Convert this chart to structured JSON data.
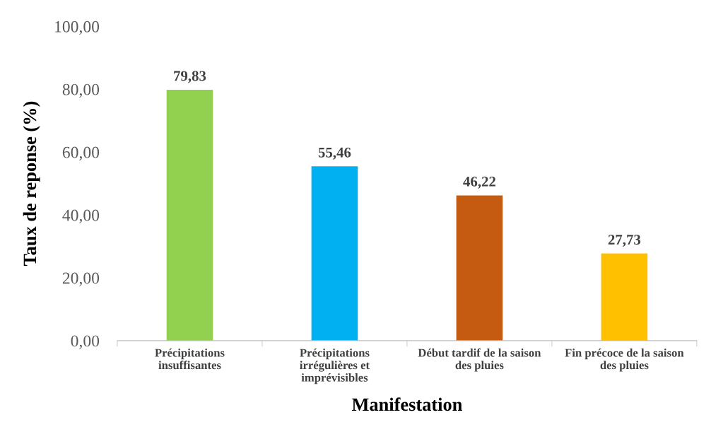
{
  "chart_data": {
    "type": "bar",
    "xlabel": "Manifestation",
    "ylabel": "Taux de reponse (%)",
    "categories": [
      "Précipitations\ninsuffisantes",
      "Précipitations\nirrégulières et\nimprévisibles",
      "Début tardif de la saison\ndes pluies",
      "Fin précoce de la saison\ndes pluies"
    ],
    "values": [
      79.83,
      55.46,
      46.22,
      27.73
    ],
    "colors": [
      "#92d050",
      "#00b0f0",
      "#c55a11",
      "#ffc000"
    ],
    "value_labels": [
      "79,83",
      "55,46",
      "46,22",
      "27,73"
    ],
    "ylim": [
      0,
      100
    ],
    "yticks": [
      {
        "value": 0,
        "label": "0,00"
      },
      {
        "value": 20,
        "label": "20,00"
      },
      {
        "value": 40,
        "label": "40,00"
      },
      {
        "value": 60,
        "label": "60,00"
      },
      {
        "value": 80,
        "label": "80,00"
      },
      {
        "value": 100,
        "label": "100,00"
      }
    ],
    "grid": false,
    "legend": false
  }
}
